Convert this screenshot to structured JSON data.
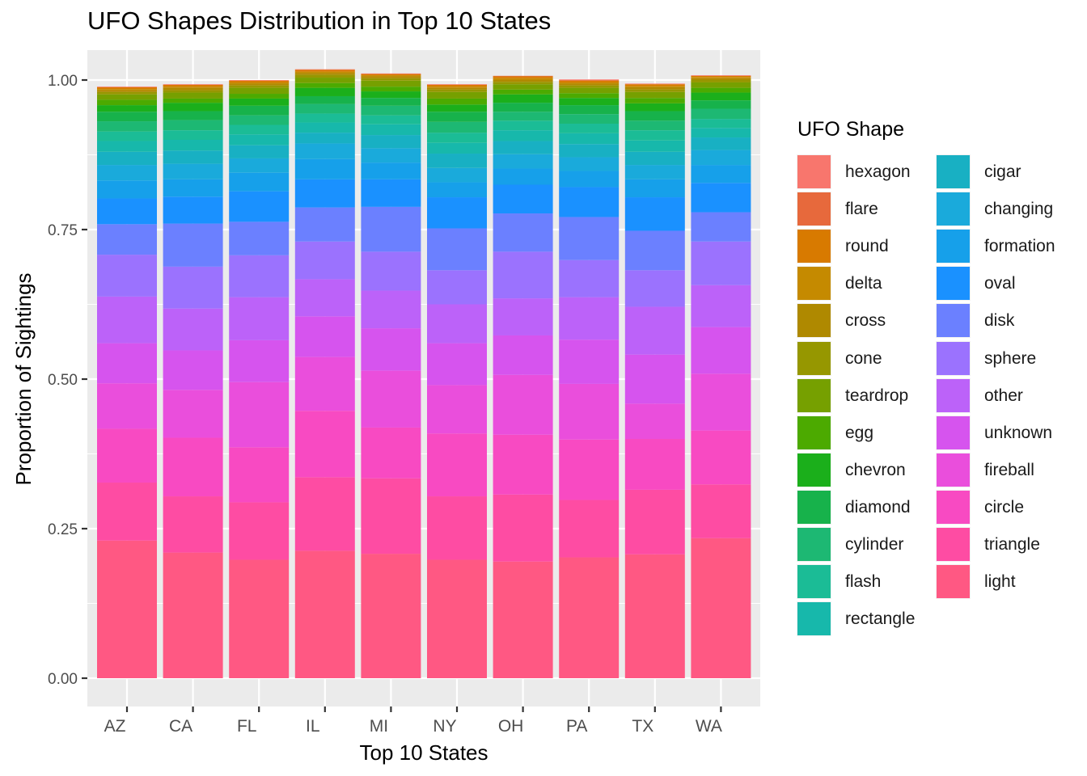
{
  "chart_data": {
    "type": "bar",
    "stacked": true,
    "position": "fill",
    "title": "UFO Shapes Distribution in Top 10 States",
    "xlabel": "Top 10 States",
    "ylabel": "Proportion of Sightings",
    "categories": [
      "AZ",
      "CA",
      "FL",
      "IL",
      "MI",
      "NY",
      "OH",
      "PA",
      "TX",
      "WA"
    ],
    "ylim": [
      0,
      1
    ],
    "yticks": [
      "0.00",
      "0.25",
      "0.50",
      "0.75",
      "1.00"
    ],
    "grid": true,
    "legend_title": "UFO Shape",
    "legend_position": "right",
    "legend_columns": [
      [
        "hexagon",
        "flare",
        "round",
        "delta",
        "cross",
        "cone",
        "teardrop",
        "egg",
        "chevron",
        "diamond",
        "cylinder",
        "flash",
        "rectangle"
      ],
      [
        "cigar",
        "changing",
        "formation",
        "oval",
        "disk",
        "sphere",
        "other",
        "unknown",
        "fireball",
        "circle",
        "triangle",
        "light"
      ]
    ],
    "colors": {
      "hexagon": "#F8766D",
      "flare": "#E7693C",
      "round": "#D87A00",
      "delta": "#C58A00",
      "cross": "#AF8900",
      "cone": "#969700",
      "teardrop": "#76A000",
      "egg": "#4CAA00",
      "chevron": "#1BAF1B",
      "diamond": "#17B24B",
      "cylinder": "#1DB873",
      "flash": "#1BBC96",
      "rectangle": "#17B8AB",
      "cigar": "#18B0C3",
      "changing": "#1AAADB",
      "formation": "#16A0EA",
      "oval": "#1A91FF",
      "disk": "#6B80FF",
      "sphere": "#9B72FE",
      "other": "#BC62F9",
      "unknown": "#D654EE",
      "fireball": "#EA4EDC",
      "circle": "#F84AC2",
      "triangle": "#FE4CA3",
      "light": "#FF5883"
    },
    "series": [
      {
        "name": "light",
        "values": [
          0.23,
          0.21,
          0.198,
          0.213,
          0.208,
          0.198,
          0.195,
          0.202,
          0.207,
          0.234
        ]
      },
      {
        "name": "triangle",
        "values": [
          0.097,
          0.094,
          0.096,
          0.123,
          0.126,
          0.106,
          0.112,
          0.096,
          0.108,
          0.09
        ]
      },
      {
        "name": "circle",
        "values": [
          0.09,
          0.098,
          0.092,
          0.111,
          0.085,
          0.105,
          0.1,
          0.101,
          0.085,
          0.09
        ]
      },
      {
        "name": "fireball",
        "values": [
          0.076,
          0.08,
          0.109,
          0.09,
          0.095,
          0.081,
          0.1,
          0.093,
          0.059,
          0.095
        ]
      },
      {
        "name": "unknown",
        "values": [
          0.067,
          0.066,
          0.07,
          0.068,
          0.071,
          0.07,
          0.066,
          0.074,
          0.082,
          0.078
        ]
      },
      {
        "name": "other",
        "values": [
          0.078,
          0.07,
          0.072,
          0.062,
          0.063,
          0.065,
          0.062,
          0.071,
          0.08,
          0.07
        ]
      },
      {
        "name": "sphere",
        "values": [
          0.07,
          0.07,
          0.07,
          0.063,
          0.065,
          0.057,
          0.078,
          0.062,
          0.061,
          0.073
        ]
      },
      {
        "name": "disk",
        "values": [
          0.051,
          0.072,
          0.056,
          0.057,
          0.075,
          0.07,
          0.064,
          0.072,
          0.066,
          0.049
        ]
      },
      {
        "name": "oval",
        "values": [
          0.043,
          0.045,
          0.051,
          0.047,
          0.046,
          0.052,
          0.048,
          0.05,
          0.056,
          0.049
        ]
      },
      {
        "name": "formation",
        "values": [
          0.03,
          0.029,
          0.031,
          0.034,
          0.028,
          0.025,
          0.027,
          0.027,
          0.03,
          0.03
        ]
      },
      {
        "name": "changing",
        "values": [
          0.026,
          0.026,
          0.024,
          0.026,
          0.024,
          0.024,
          0.024,
          0.023,
          0.024,
          0.025
        ]
      },
      {
        "name": "cigar",
        "values": [
          0.022,
          0.022,
          0.022,
          0.018,
          0.022,
          0.024,
          0.022,
          0.022,
          0.022,
          0.021
        ]
      },
      {
        "name": "rectangle",
        "values": [
          0.018,
          0.018,
          0.018,
          0.017,
          0.018,
          0.018,
          0.018,
          0.018,
          0.019,
          0.016
        ]
      },
      {
        "name": "flash",
        "values": [
          0.016,
          0.016,
          0.016,
          0.015,
          0.015,
          0.017,
          0.016,
          0.016,
          0.017,
          0.015
        ]
      },
      {
        "name": "cylinder",
        "values": [
          0.017,
          0.017,
          0.016,
          0.016,
          0.016,
          0.018,
          0.015,
          0.016,
          0.016,
          0.017
        ]
      },
      {
        "name": "diamond",
        "values": [
          0.016,
          0.015,
          0.016,
          0.013,
          0.013,
          0.017,
          0.015,
          0.015,
          0.016,
          0.014
        ]
      },
      {
        "name": "chevron",
        "values": [
          0.011,
          0.014,
          0.012,
          0.014,
          0.011,
          0.012,
          0.014,
          0.012,
          0.013,
          0.013
        ]
      },
      {
        "name": "egg",
        "values": [
          0.009,
          0.007,
          0.008,
          0.008,
          0.008,
          0.01,
          0.008,
          0.008,
          0.009,
          0.008
        ]
      },
      {
        "name": "teardrop",
        "values": [
          0.009,
          0.01,
          0.01,
          0.009,
          0.01,
          0.011,
          0.009,
          0.009,
          0.01,
          0.009
        ]
      },
      {
        "name": "cone",
        "values": [
          0.004,
          0.004,
          0.004,
          0.005,
          0.004,
          0.004,
          0.004,
          0.004,
          0.004,
          0.004
        ]
      },
      {
        "name": "cross",
        "values": [
          0.003,
          0.004,
          0.003,
          0.003,
          0.003,
          0.003,
          0.003,
          0.003,
          0.004,
          0.003
        ]
      },
      {
        "name": "delta",
        "values": [
          0.002,
          0.002,
          0.002,
          0.002,
          0.002,
          0.002,
          0.003,
          0.002,
          0.002,
          0.002
        ]
      },
      {
        "name": "round",
        "values": [
          0.003,
          0.003,
          0.003,
          0.003,
          0.002,
          0.003,
          0.003,
          0.003,
          0.003,
          0.002
        ]
      },
      {
        "name": "flare",
        "values": [
          0.0,
          0.0,
          0.0,
          0.0,
          0.0,
          0.0,
          0.001,
          0.001,
          0.0,
          0.0
        ]
      },
      {
        "name": "hexagon",
        "values": [
          0.001,
          0.001,
          0.001,
          0.001,
          0.001,
          0.001,
          0.0,
          0.001,
          0.001,
          0.001
        ]
      }
    ]
  }
}
